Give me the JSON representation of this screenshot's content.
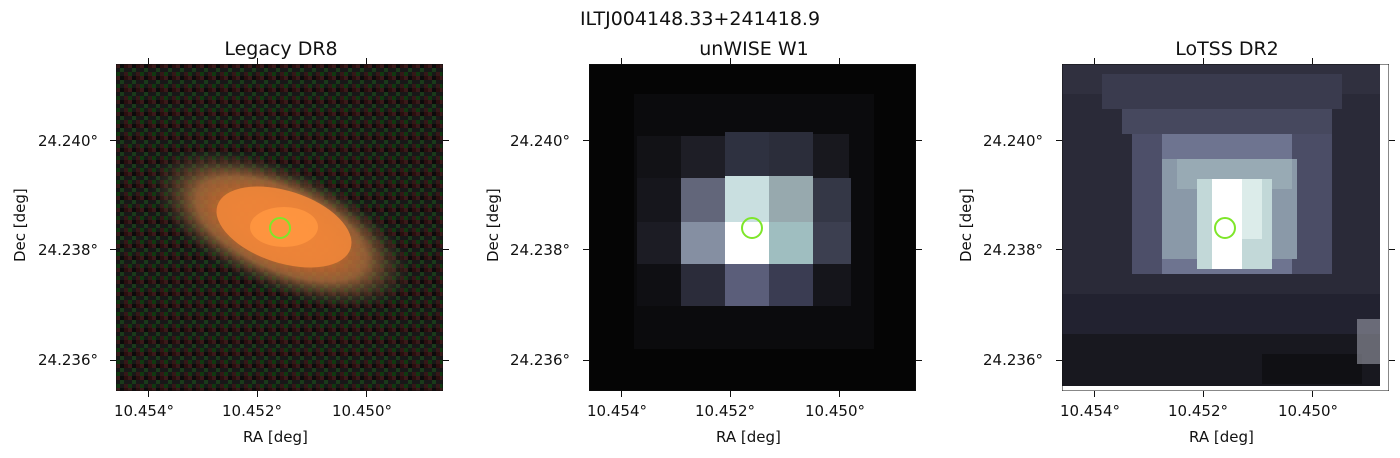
{
  "figure": {
    "suptitle": "ILTJ004148.33+241418.9",
    "panels": [
      {
        "title": "Legacy DR8",
        "xlabel": "RA [deg]",
        "ylabel": "Dec [deg]",
        "xticks": [
          "10.454°",
          "10.452°",
          "10.450°"
        ],
        "yticks": [
          "24.240°",
          "24.238°",
          "24.236°"
        ]
      },
      {
        "title": "unWISE W1",
        "xlabel": "RA [deg]",
        "ylabel": "Dec [deg]",
        "xticks": [
          "10.454°",
          "10.452°",
          "10.450°"
        ],
        "yticks": [
          "24.240°",
          "24.238°",
          "24.236°"
        ]
      },
      {
        "title": "LoTSS DR2",
        "xlabel": "RA [deg]",
        "ylabel": "Dec [deg]",
        "xticks": [
          "10.454°",
          "10.452°",
          "10.450°"
        ],
        "yticks": [
          "24.240°",
          "24.238°",
          "24.236°"
        ]
      }
    ],
    "colors": {
      "marker_circle": "#7ee62a",
      "legacy_core": "#f08a30",
      "unwise_peak": "#ffffff",
      "lotss_background": "#2a2a38"
    }
  }
}
